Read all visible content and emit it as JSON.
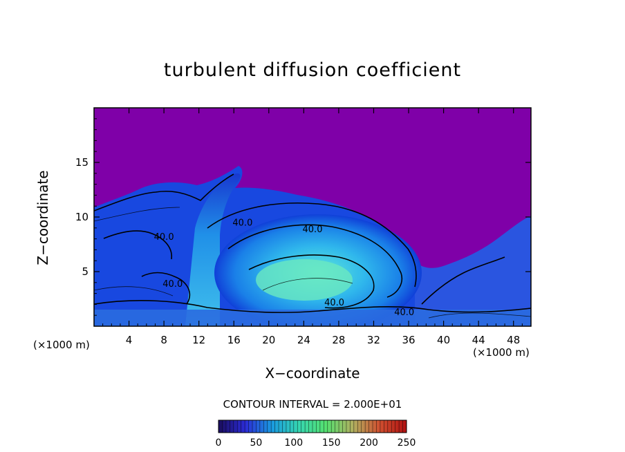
{
  "chart_data": {
    "type": "heatmap",
    "title": "turbulent diffusion coefficient",
    "xlabel": "X−coordinate",
    "ylabel": "Z−coordinate",
    "x_unit_left": "(×1000 m)",
    "x_unit_right": "(×1000 m)",
    "xlim": [
      0,
      50
    ],
    "ylim": [
      0,
      20
    ],
    "x_ticks": [
      4,
      8,
      12,
      16,
      20,
      24,
      28,
      32,
      36,
      40,
      44,
      48
    ],
    "y_ticks": [
      5,
      10,
      15
    ],
    "contour_interval": "CONTOUR INTERVAL = 2.000E+01",
    "contour_labels": [
      {
        "text": "40.0",
        "x": 17,
        "z": 9.2
      },
      {
        "text": "40.0",
        "x": 25,
        "z": 8.6
      },
      {
        "text": "40.0",
        "x": 8,
        "z": 7.9
      },
      {
        "text": "40.0",
        "x": 9,
        "z": 3.6
      },
      {
        "text": "40.0",
        "x": 27.5,
        "z": 1.9
      },
      {
        "text": "40.0",
        "x": 35.5,
        "z": 1.0
      }
    ],
    "colorbar": {
      "min": 0,
      "max": 250,
      "tick_labels": [
        "0",
        "50",
        "100",
        "150",
        "200",
        "250"
      ],
      "colors": [
        "#1a0d5c",
        "#2b2bd6",
        "#1a9be0",
        "#36d6b0",
        "#55e070",
        "#b0b060",
        "#d05030",
        "#b01010"
      ]
    },
    "background_color": "#7f00a8"
  }
}
